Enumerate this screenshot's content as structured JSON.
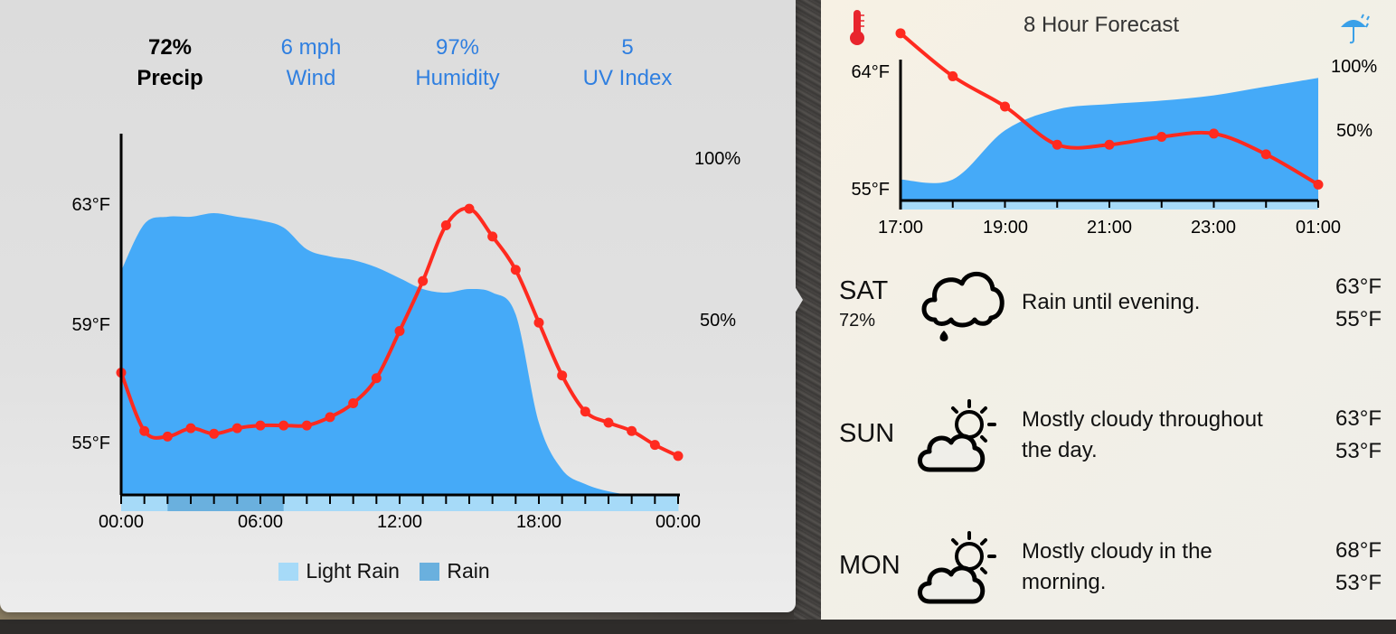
{
  "colors": {
    "accent": "#2f7fe0",
    "precip_area": "#45aaf8",
    "temp_line": "#ff2a1f",
    "light_rain": "#a6daf8",
    "rain": "#6ab0de"
  },
  "stats": [
    {
      "value": "72%",
      "label": "Precip",
      "active": true
    },
    {
      "value": "6 mph",
      "label": "Wind",
      "active": false
    },
    {
      "value": "97%",
      "label": "Humidity",
      "active": false
    },
    {
      "value": "5",
      "label": "UV Index",
      "active": false
    }
  ],
  "day_chart": {
    "chart_data": {
      "type": "area",
      "title": "",
      "x": [
        "00:00",
        "01:00",
        "02:00",
        "03:00",
        "04:00",
        "05:00",
        "06:00",
        "07:00",
        "08:00",
        "09:00",
        "10:00",
        "11:00",
        "12:00",
        "13:00",
        "14:00",
        "15:00",
        "16:00",
        "17:00",
        "18:00",
        "19:00",
        "20:00",
        "21:00",
        "22:00",
        "23:00",
        "00:00"
      ],
      "xticks": [
        "00:00",
        "06:00",
        "12:00",
        "18:00",
        "00:00"
      ],
      "temp_axis_labels": [
        "63°F",
        "59°F",
        "55°F"
      ],
      "precip_axis_labels": [
        "100%",
        "50%"
      ],
      "series": [
        {
          "kind": "temperature",
          "unit": "°F",
          "values": [
            57.4,
            55.3,
            55.1,
            55.4,
            55.2,
            55.4,
            55.5,
            55.5,
            55.5,
            55.8,
            56.3,
            57.2,
            58.9,
            60.7,
            62.7,
            63.3,
            62.3,
            61.1,
            59.2,
            57.3,
            56.0,
            55.6,
            55.3,
            54.8,
            54.4
          ]
        },
        {
          "kind": "precip_probability",
          "unit": "%",
          "values": [
            62,
            75,
            77,
            77,
            78,
            77,
            76,
            74,
            68,
            66,
            65,
            63,
            60,
            57,
            56,
            57,
            56,
            50,
            20,
            7,
            3,
            1,
            0,
            0,
            0
          ]
        }
      ],
      "ylim_temp": [
        53,
        66
      ],
      "ylim_precip": [
        0,
        100
      ],
      "intensity_bar": [
        "light",
        "light",
        "rain",
        "rain",
        "rain",
        "rain",
        "rain",
        "light",
        "light",
        "light",
        "light",
        "light",
        "light",
        "light",
        "light",
        "light",
        "light",
        "light",
        "light",
        "light",
        "light",
        "light",
        "light",
        "light"
      ]
    }
  },
  "legend": [
    {
      "label": "Light Rain",
      "color": "#a6daf8"
    },
    {
      "label": "Rain",
      "color": "#6ab0de"
    }
  ],
  "forecast": {
    "title": "8 Hour Forecast",
    "chart_data": {
      "type": "area",
      "x": [
        "17:00",
        "18:00",
        "19:00",
        "20:00",
        "21:00",
        "22:00",
        "23:00",
        "00:00",
        "01:00"
      ],
      "xticks": [
        "17:00",
        "19:00",
        "21:00",
        "23:00",
        "01:00"
      ],
      "temp_axis_labels": [
        "64°F",
        "55°F"
      ],
      "precip_axis_labels": [
        "100%",
        "50%"
      ],
      "series": [
        {
          "kind": "temperature",
          "unit": "°F",
          "values": [
            64.0,
            61.3,
            59.4,
            57.0,
            57.0,
            57.5,
            57.7,
            56.4,
            54.5
          ]
        },
        {
          "kind": "precip_probability",
          "unit": "%",
          "values": [
            12,
            12,
            40,
            52,
            55,
            57,
            60,
            65,
            70
          ]
        }
      ],
      "ylim_temp": [
        53.5,
        64.5
      ],
      "ylim_precip": [
        0,
        100
      ]
    },
    "days": [
      {
        "day": "SAT",
        "precip": "72%",
        "icon": "rain-cloud-icon",
        "summary": "Rain until evening.",
        "high": "63°F",
        "low": "55°F"
      },
      {
        "day": "SUN",
        "precip": "",
        "icon": "partly-cloudy-icon",
        "summary": "Mostly cloudy throughout the day.",
        "high": "63°F",
        "low": "53°F"
      },
      {
        "day": "MON",
        "precip": "",
        "icon": "partly-cloudy-icon",
        "summary": "Mostly cloudy in the morning.",
        "high": "68°F",
        "low": "53°F"
      }
    ]
  }
}
